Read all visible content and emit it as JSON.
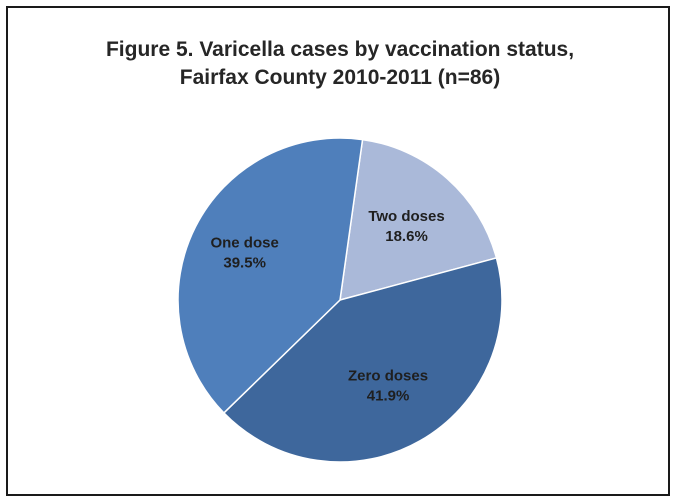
{
  "chart_data": {
    "type": "pie",
    "title_lines": [
      "Figure 5. Varicella cases by vaccination status,",
      "Fairfax County 2010-2011 (n=86)"
    ],
    "slices": [
      {
        "name": "Two doses",
        "value": 18.6,
        "value_label": "18.6%",
        "color": "#aab9d9"
      },
      {
        "name": "Zero doses",
        "value": 41.9,
        "value_label": "41.9%",
        "color": "#3e679c"
      },
      {
        "name": "One dose",
        "value": 39.5,
        "value_label": "39.5%",
        "color": "#4f7fbb"
      }
    ],
    "start_angle_deg": 8,
    "legend": "none",
    "labels_position": "inside"
  }
}
